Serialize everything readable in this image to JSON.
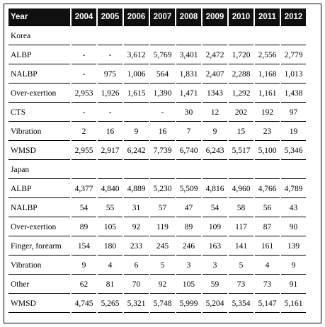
{
  "table": {
    "headers": [
      "Year",
      "2004",
      "2005",
      "2006",
      "2007",
      "2008",
      "2009",
      "2010",
      "2011",
      "2012"
    ],
    "rows": [
      {
        "label": "Korea",
        "values": [
          "",
          "",
          "",
          "",
          "",
          "",
          "",
          "",
          ""
        ],
        "section": true
      },
      {
        "label": "ALBP",
        "values": [
          "-",
          "-",
          "3,612",
          "5,769",
          "3,401",
          "2,472",
          "1,720",
          "2,556",
          "2,779"
        ]
      },
      {
        "label": "NALBP",
        "values": [
          "-",
          "975",
          "1,006",
          "564",
          "1,831",
          "2,407",
          "2,288",
          "1,168",
          "1,013"
        ]
      },
      {
        "label": "Over-exertion",
        "values": [
          "2,953",
          "1,926",
          "1,615",
          "1,390",
          "1,471",
          "1343",
          "1,292",
          "1,161",
          "1,438"
        ]
      },
      {
        "label": "CTS",
        "values": [
          "-",
          "-",
          "",
          "-",
          "30",
          "12",
          "202",
          "192",
          "97"
        ]
      },
      {
        "label": "Vibration",
        "values": [
          "2",
          "16",
          "9",
          "16",
          "7",
          "9",
          "15",
          "23",
          "19"
        ]
      },
      {
        "label": "WMSD",
        "values": [
          "2,955",
          "2,917",
          "6,242",
          "7,739",
          "6,740",
          "6,243",
          "5,517",
          "5,100",
          "5,346"
        ]
      },
      {
        "label": "Japan",
        "values": [
          "",
          "",
          "",
          "",
          "",
          "",
          "",
          "",
          ""
        ],
        "section": true
      },
      {
        "label": "ALBP",
        "values": [
          "4,377",
          "4,840",
          "4,889",
          "5,230",
          "5,509",
          "4,816",
          "4,960",
          "4,766",
          "4,789"
        ]
      },
      {
        "label": "NALBP",
        "values": [
          "54",
          "55",
          "31",
          "57",
          "47",
          "54",
          "58",
          "56",
          "43"
        ]
      },
      {
        "label": "Over-exertion",
        "values": [
          "89",
          "105",
          "92",
          "119",
          "89",
          "109",
          "117",
          "87",
          "90"
        ]
      },
      {
        "label": "Finger, forearm",
        "values": [
          "154",
          "180",
          "233",
          "245",
          "246",
          "163",
          "141",
          "161",
          "139"
        ]
      },
      {
        "label": "Vibration",
        "values": [
          "9",
          "4",
          "6",
          "5",
          "3",
          "3",
          "5",
          "4",
          "9"
        ]
      },
      {
        "label": "Other",
        "values": [
          "62",
          "81",
          "70",
          "92",
          "105",
          "59",
          "73",
          "73",
          "91"
        ]
      },
      {
        "label": "WMSD",
        "values": [
          "4,745",
          "5,265",
          "5,321",
          "5,748",
          "5,999",
          "5,204",
          "5,354",
          "5,147",
          "5,161"
        ]
      }
    ]
  }
}
